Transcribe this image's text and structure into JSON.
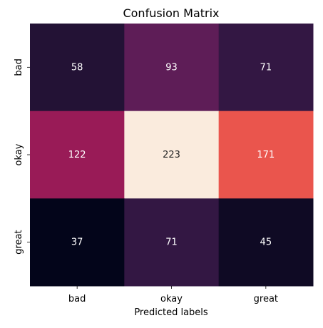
{
  "chart_data": {
    "type": "heatmap",
    "title": "Confusion Matrix",
    "xlabel": "Predicted labels",
    "ylabel": "",
    "x_categories": [
      "bad",
      "okay",
      "great"
    ],
    "y_categories": [
      "bad",
      "okay",
      "great"
    ],
    "values": [
      [
        58,
        93,
        71
      ],
      [
        122,
        223,
        171
      ],
      [
        37,
        71,
        45
      ]
    ],
    "colorscale": "rocket",
    "annotations_shown": true,
    "colorbar": false
  }
}
